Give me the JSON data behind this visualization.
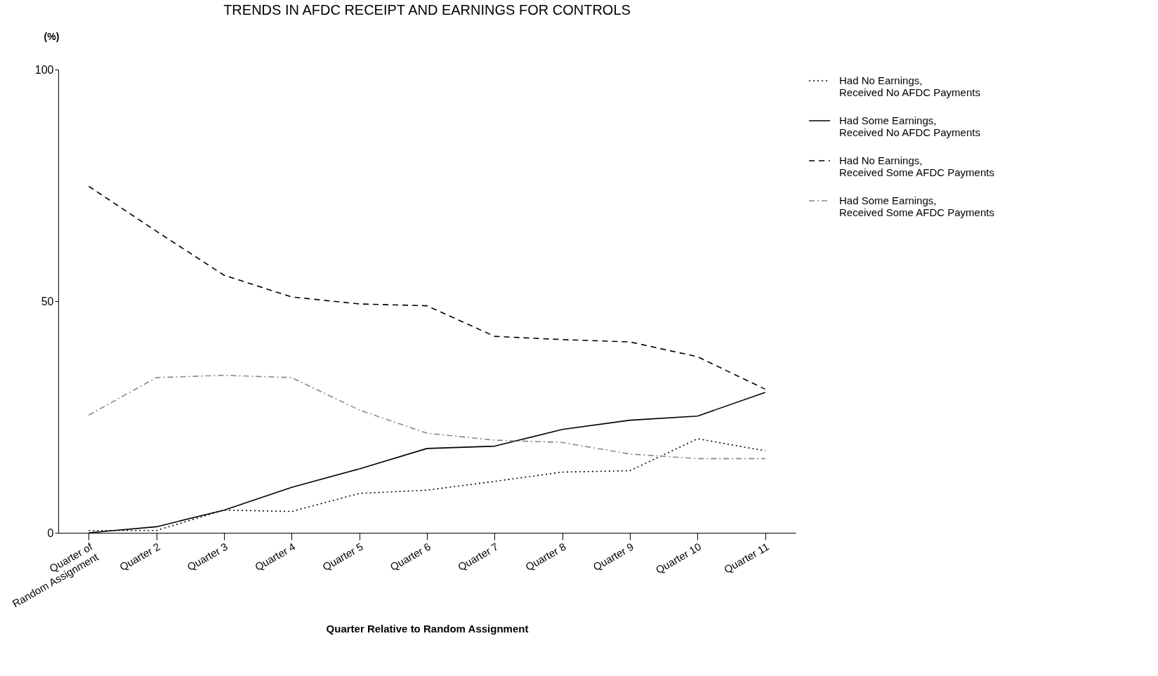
{
  "chart_data": {
    "type": "line",
    "title": "TRENDS IN AFDC RECEIPT AND EARNINGS FOR CONTROLS",
    "xlabel": "Quarter Relative to Random Assignment",
    "ylabel": "(%)",
    "categories": [
      "Quarter of\nRandom Assignment",
      "Quarter 2",
      "Quarter 3",
      "Quarter 4",
      "Quarter 5",
      "Quarter 6",
      "Quarter 7",
      "Quarter 8",
      "Quarter 9",
      "Quarter 10",
      "Quarter 11"
    ],
    "ylim": [
      0,
      100
    ],
    "yticks": [
      0,
      50,
      100
    ],
    "grid": false,
    "legend": "right",
    "marker": "none",
    "series": [
      {
        "name": "Had No Earnings,\nReceived No AFDC Payments",
        "color": "#000000",
        "line_style": "dotted",
        "values": [
          0.5,
          0.5,
          4.9,
          4.6,
          8.5,
          9.2,
          11.1,
          13.1,
          13.4,
          20.3,
          17.7
        ]
      },
      {
        "name": "Had Some Earnings,\nReceived No AFDC Payments",
        "color": "#000000",
        "line_style": "solid",
        "values": [
          0,
          1.3,
          4.9,
          9.8,
          13.8,
          18.2,
          18.7,
          22.3,
          24.3,
          25.2,
          30.3
        ]
      },
      {
        "name": "Had No Earnings,\nReceived Some AFDC Payments",
        "color": "#000000",
        "line_style": "dashed",
        "values": [
          74.8,
          65.1,
          55.6,
          50.9,
          49.4,
          49.0,
          42.4,
          41.7,
          41.2,
          38.0,
          31.0
        ]
      },
      {
        "name": "Had Some Earnings,\nReceived Some AFDC Payments",
        "color": "#888888",
        "line_style": "dashdot",
        "values": [
          25.4,
          33.5,
          34.0,
          33.5,
          26.5,
          21.5,
          20.0,
          19.5,
          17.0,
          16.0,
          16.0
        ]
      }
    ]
  }
}
